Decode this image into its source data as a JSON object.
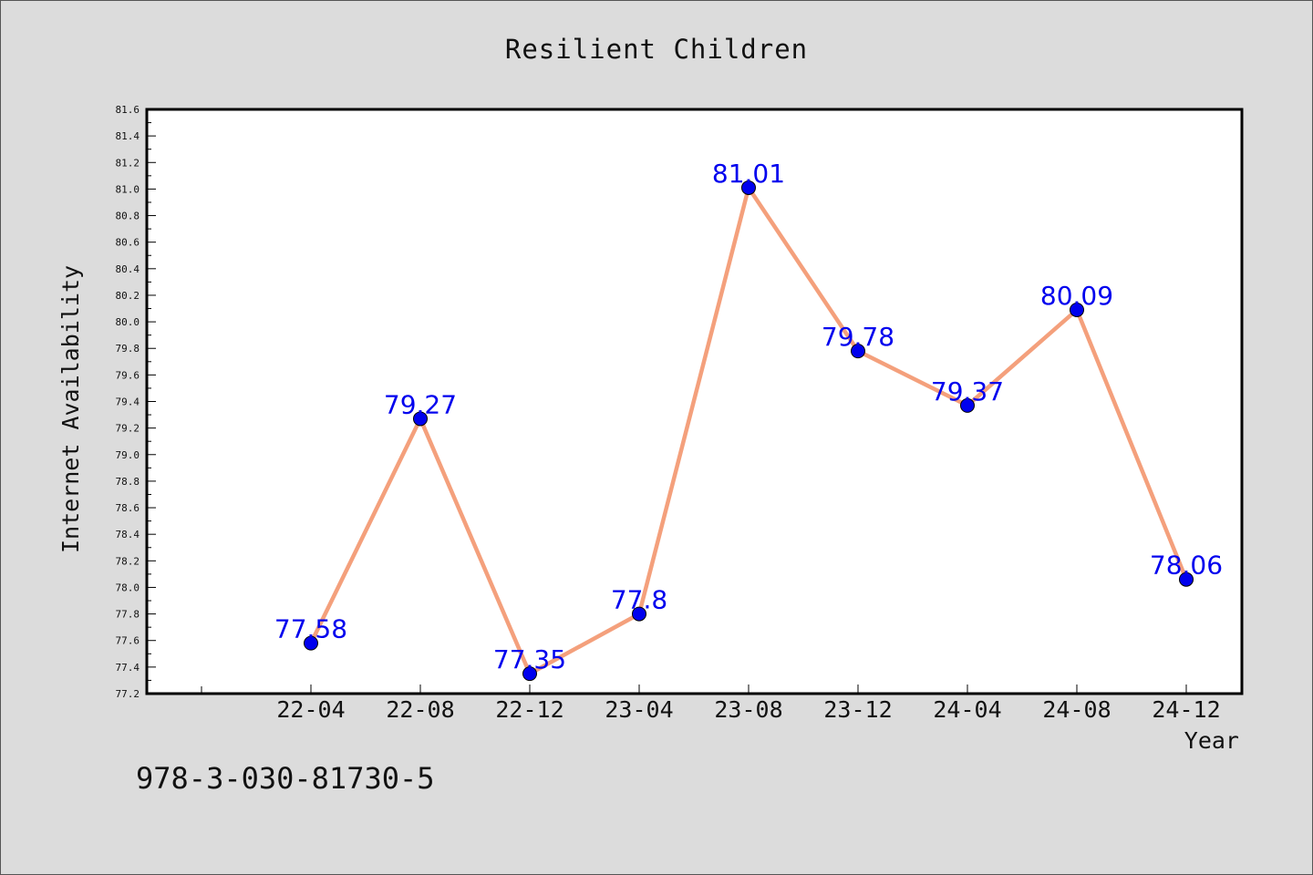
{
  "chart_data": {
    "type": "line",
    "title": "Resilient Children",
    "xlabel": "Year",
    "ylabel": "Internet Availability",
    "categories": [
      "22-04",
      "22-08",
      "22-12",
      "23-04",
      "23-08",
      "23-12",
      "24-04",
      "24-08",
      "24-12"
    ],
    "series": [
      {
        "values": [
          77.58,
          79.27,
          77.35,
          77.8,
          81.01,
          79.78,
          79.37,
          80.09,
          78.06
        ],
        "labels": [
          "77.58",
          "79.27",
          "77.35",
          "77.8",
          "81.01",
          "79.78",
          "79.37",
          "80.09",
          "78.06"
        ]
      }
    ],
    "ylim": [
      77.2,
      81.6
    ],
    "yticks": [
      "77.2",
      "77.4",
      "77.6",
      "77.8",
      "78.0",
      "78.2",
      "78.4",
      "78.6",
      "78.8",
      "79.0",
      "79.2",
      "79.4",
      "79.6",
      "79.8",
      "80.0",
      "80.2",
      "80.4",
      "80.6",
      "80.8",
      "81.0",
      "81.2",
      "81.4",
      "81.6"
    ],
    "grid": false,
    "line_color": "#f4a07c",
    "marker_color": "#0000ee",
    "label_color": "#0000ee"
  },
  "footer_text": "978-3-030-81730-5"
}
